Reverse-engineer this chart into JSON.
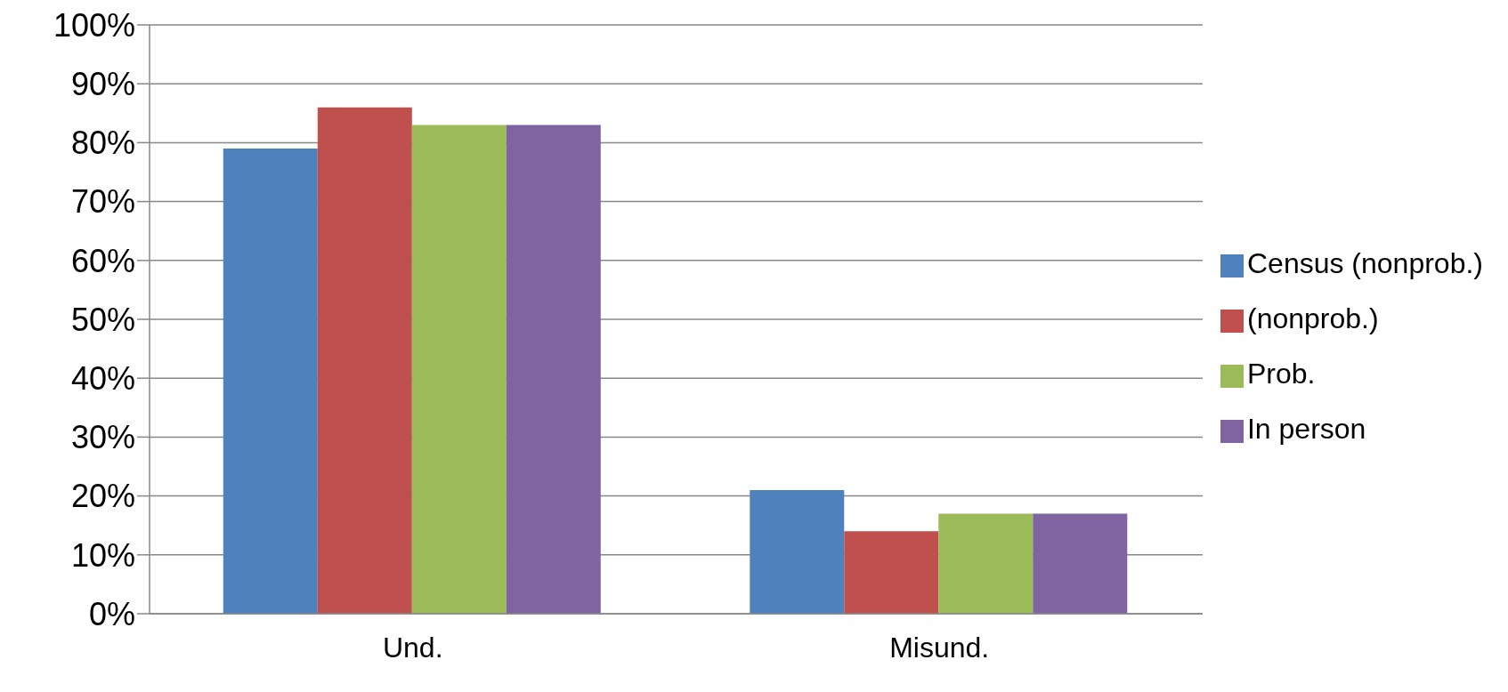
{
  "chart_data": {
    "type": "bar",
    "categories": [
      "Und.",
      "Misund."
    ],
    "series": [
      {
        "name": "Census (nonprob.)",
        "color": "#4f81bd",
        "values": [
          79,
          21
        ]
      },
      {
        "name": "(nonprob.)",
        "color": "#c0504d",
        "values": [
          86,
          14
        ]
      },
      {
        "name": "Prob.",
        "color": "#9bbb59",
        "values": [
          83,
          17
        ]
      },
      {
        "name": "In person",
        "color": "#8064a2",
        "values": [
          83,
          17
        ]
      }
    ],
    "ylim": [
      0,
      100
    ],
    "yticks": [
      {
        "value": 0,
        "label": "0%"
      },
      {
        "value": 10,
        "label": "10%"
      },
      {
        "value": 20,
        "label": "20%"
      },
      {
        "value": 30,
        "label": "30%"
      },
      {
        "value": 40,
        "label": "40%"
      },
      {
        "value": 50,
        "label": "50%"
      },
      {
        "value": 60,
        "label": "60%"
      },
      {
        "value": 70,
        "label": "70%"
      },
      {
        "value": 80,
        "label": "80%"
      },
      {
        "value": 90,
        "label": "90%"
      },
      {
        "value": 100,
        "label": "100%"
      }
    ],
    "grid": "y",
    "legend": "right"
  }
}
